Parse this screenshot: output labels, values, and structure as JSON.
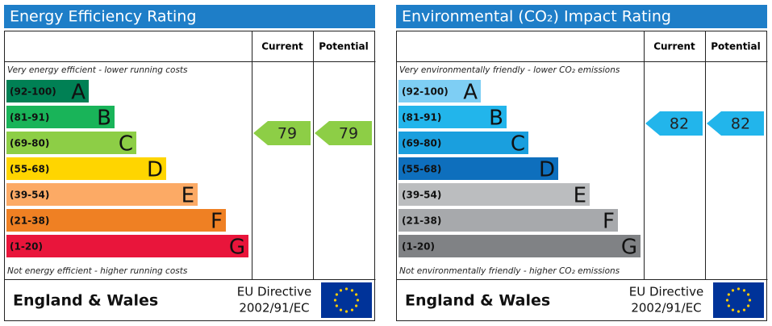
{
  "energy": {
    "title": "Energy Efficiency Rating",
    "header": {
      "current": "Current",
      "potential": "Potential"
    },
    "top_note": "Very energy efficient - lower running costs",
    "bottom_note": "Not energy efficient - higher running costs",
    "bands": [
      {
        "range": "(92-100)",
        "letter": "A",
        "color": "#008054"
      },
      {
        "range": "(81-91)",
        "letter": "B",
        "color": "#19b459"
      },
      {
        "range": "(69-80)",
        "letter": "C",
        "color": "#8dce46"
      },
      {
        "range": "(55-68)",
        "letter": "D",
        "color": "#ffd500"
      },
      {
        "range": "(39-54)",
        "letter": "E",
        "color": "#fcaa65"
      },
      {
        "range": "(21-38)",
        "letter": "F",
        "color": "#ef8023"
      },
      {
        "range": "(1-20)",
        "letter": "G",
        "color": "#e9153b"
      }
    ],
    "current": 79,
    "potential": 79,
    "footer": {
      "region": "England & Wales",
      "directive_line1": "EU Directive",
      "directive_line2": "2002/91/EC"
    }
  },
  "environmental": {
    "title": "Environmental (CO₂) Impact Rating",
    "header": {
      "current": "Current",
      "potential": "Potential"
    },
    "top_note": "Very environmentally friendly - lower CO₂ emissions",
    "bottom_note": "Not environmentally friendly - higher CO₂ emissions",
    "bands": [
      {
        "range": "(92-100)",
        "letter": "A",
        "color": "#7ecef4"
      },
      {
        "range": "(81-91)",
        "letter": "B",
        "color": "#22b5eb"
      },
      {
        "range": "(69-80)",
        "letter": "C",
        "color": "#1a9fde"
      },
      {
        "range": "(55-68)",
        "letter": "D",
        "color": "#0e6fbd"
      },
      {
        "range": "(39-54)",
        "letter": "E",
        "color": "#bbbdbf"
      },
      {
        "range": "(21-38)",
        "letter": "F",
        "color": "#a7a9ac"
      },
      {
        "range": "(1-20)",
        "letter": "G",
        "color": "#808285"
      }
    ],
    "current": 82,
    "potential": 82,
    "footer": {
      "region": "England & Wales",
      "directive_line1": "EU Directive",
      "directive_line2": "2002/91/EC"
    }
  }
}
